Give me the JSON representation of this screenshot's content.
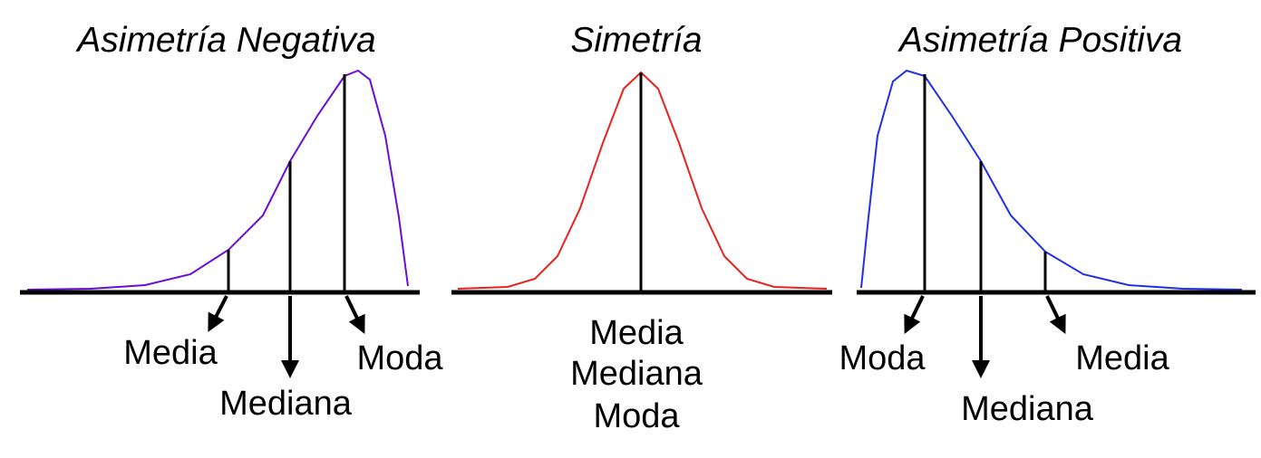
{
  "panels": {
    "negative": {
      "title": "Asimetría Negativa",
      "curve_color": "#6a0dd8",
      "labels": {
        "media": "Media",
        "mediana": "Mediana",
        "moda": "Moda"
      }
    },
    "symmetric": {
      "title": "Simetría",
      "curve_color": "#e8231f",
      "labels": {
        "media": "Media",
        "mediana": "Mediana",
        "moda": "Moda"
      }
    },
    "positive": {
      "title": "Asimetría Positiva",
      "curve_color": "#2030e6",
      "labels": {
        "moda": "Moda",
        "mediana": "Mediana",
        "media": "Media"
      }
    }
  }
}
